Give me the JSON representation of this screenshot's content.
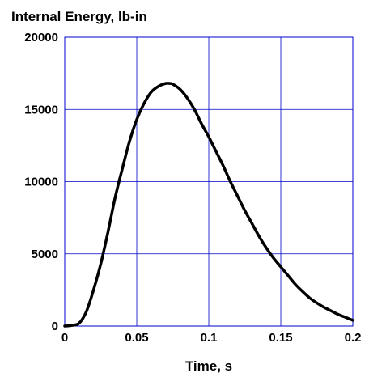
{
  "chart_data": {
    "type": "line",
    "title": "Internal Energy, lb-in",
    "xlabel": "Time, s",
    "ylabel": "",
    "xlim": [
      0,
      0.2
    ],
    "ylim": [
      0,
      20000
    ],
    "grid": true,
    "x_ticks": [
      "0",
      "0.05",
      "0.1",
      "0.15",
      "0.2"
    ],
    "y_ticks": [
      "0",
      "5000",
      "10000",
      "15000",
      "20000"
    ],
    "colors": {
      "line": "#000000",
      "grid": "#0000cc",
      "frame": "#0000cc"
    },
    "series": [
      {
        "x": [
          0,
          0.005,
          0.01,
          0.015,
          0.02,
          0.025,
          0.03,
          0.035,
          0.04,
          0.045,
          0.05,
          0.055,
          0.06,
          0.065,
          0.07,
          0.073,
          0.075,
          0.08,
          0.085,
          0.09,
          0.095,
          0.1,
          0.105,
          0.11,
          0.115,
          0.12,
          0.125,
          0.13,
          0.135,
          0.14,
          0.145,
          0.15,
          0.155,
          0.16,
          0.165,
          0.17,
          0.175,
          0.18,
          0.185,
          0.19,
          0.195,
          0.2
        ],
        "values": [
          0,
          50,
          200,
          1000,
          2500,
          4300,
          6500,
          8900,
          10900,
          12800,
          14300,
          15400,
          16200,
          16600,
          16800,
          16800,
          16750,
          16400,
          15800,
          15000,
          14000,
          13100,
          12100,
          11100,
          10000,
          9000,
          8000,
          7100,
          6200,
          5400,
          4700,
          4100,
          3500,
          2900,
          2400,
          1950,
          1600,
          1300,
          1050,
          800,
          600,
          400
        ]
      }
    ]
  }
}
